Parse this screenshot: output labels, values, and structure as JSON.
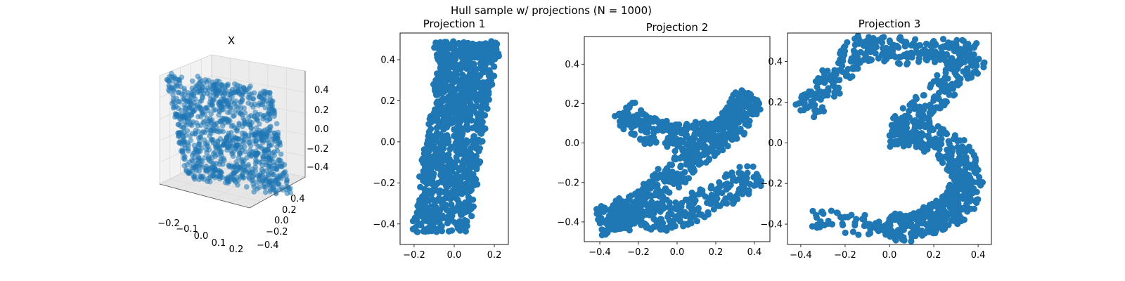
{
  "figure": {
    "title": "Hull sample w/ projections (N = 1000)"
  },
  "style": {
    "point_color": "#1f77b4",
    "pane_color": "#f2f2f2",
    "grid_color": "#dcdcdc"
  },
  "chart_data": [
    {
      "type": "scatter3d",
      "title": "X",
      "grid": true,
      "x_ticks": [
        "−0.2",
        "−0.1",
        "0.0",
        "0.1",
        "0.2"
      ],
      "y_ticks": [
        "−0.4",
        "−0.2",
        "0.0",
        "0.2",
        "0.4"
      ],
      "z_ticks": [
        "−0.4",
        "−0.2",
        "0.0",
        "0.2",
        "0.4"
      ],
      "xlim": [
        -0.25,
        0.25
      ],
      "ylim": [
        -0.5,
        0.5
      ],
      "zlim": [
        -0.5,
        0.5
      ],
      "n_points": 1000
    },
    {
      "type": "scatter",
      "title": "Projection 1",
      "shape": "digit 1",
      "x_ticks": [
        "−0.2",
        "0.0",
        "0.2"
      ],
      "y_ticks": [
        "−0.4",
        "−0.2",
        "0.0",
        "0.2",
        "0.4"
      ],
      "xlim": [
        -0.27,
        0.27
      ],
      "ylim": [
        -0.5,
        0.53
      ],
      "n_points": 1000
    },
    {
      "type": "scatter",
      "title": "Projection 2",
      "shape": "digit 2",
      "x_ticks": [
        "−0.4",
        "−0.2",
        "0.0",
        "0.2",
        "0.4"
      ],
      "y_ticks": [
        "−0.4",
        "−0.2",
        "0.0",
        "0.2",
        "0.4"
      ],
      "xlim": [
        -0.48,
        0.48
      ],
      "ylim": [
        -0.5,
        0.54
      ],
      "n_points": 1000
    },
    {
      "type": "scatter",
      "title": "Projection 3",
      "shape": "digit 3",
      "x_ticks": [
        "−0.4",
        "−0.2",
        "0.0",
        "0.2",
        "0.4"
      ],
      "y_ticks": [
        "−0.4",
        "−0.2",
        "0.0",
        "0.2",
        "0.4"
      ],
      "xlim": [
        -0.46,
        0.46
      ],
      "ylim": [
        -0.5,
        0.54
      ],
      "n_points": 1000
    }
  ]
}
